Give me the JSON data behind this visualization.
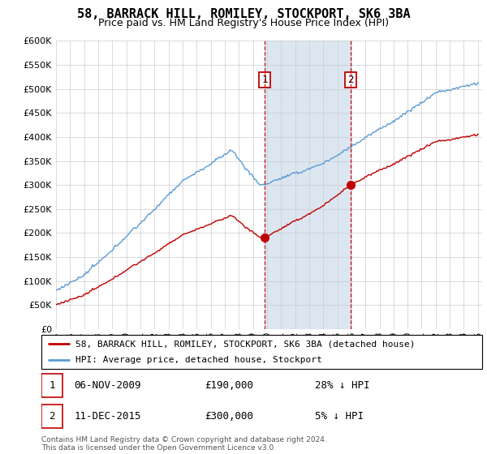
{
  "title": "58, BARRACK HILL, ROMILEY, STOCKPORT, SK6 3BA",
  "subtitle": "Price paid vs. HM Land Registry's House Price Index (HPI)",
  "legend_line1": "58, BARRACK HILL, ROMILEY, STOCKPORT, SK6 3BA (detached house)",
  "legend_line2": "HPI: Average price, detached house, Stockport",
  "transaction1_date": "06-NOV-2009",
  "transaction1_price": "£190,000",
  "transaction1_hpi": "28% ↓ HPI",
  "transaction2_date": "11-DEC-2015",
  "transaction2_price": "£300,000",
  "transaction2_hpi": "5% ↓ HPI",
  "footer": "Contains HM Land Registry data © Crown copyright and database right 2024.\nThis data is licensed under the Open Government Licence v3.0.",
  "hpi_color": "#5b9bd5",
  "price_color": "#c00000",
  "vline_color": "#c00000",
  "highlight_bg": "#dce6f1",
  "ylim": [
    0,
    600000
  ],
  "yticks": [
    0,
    50000,
    100000,
    150000,
    200000,
    250000,
    300000,
    350000,
    400000,
    450000,
    500000,
    550000,
    600000
  ],
  "year_start": 1995,
  "year_end": 2025,
  "transaction1_year": 2009.85,
  "transaction2_year": 2015.95,
  "transaction1_price_val": 190000,
  "transaction2_price_val": 300000
}
